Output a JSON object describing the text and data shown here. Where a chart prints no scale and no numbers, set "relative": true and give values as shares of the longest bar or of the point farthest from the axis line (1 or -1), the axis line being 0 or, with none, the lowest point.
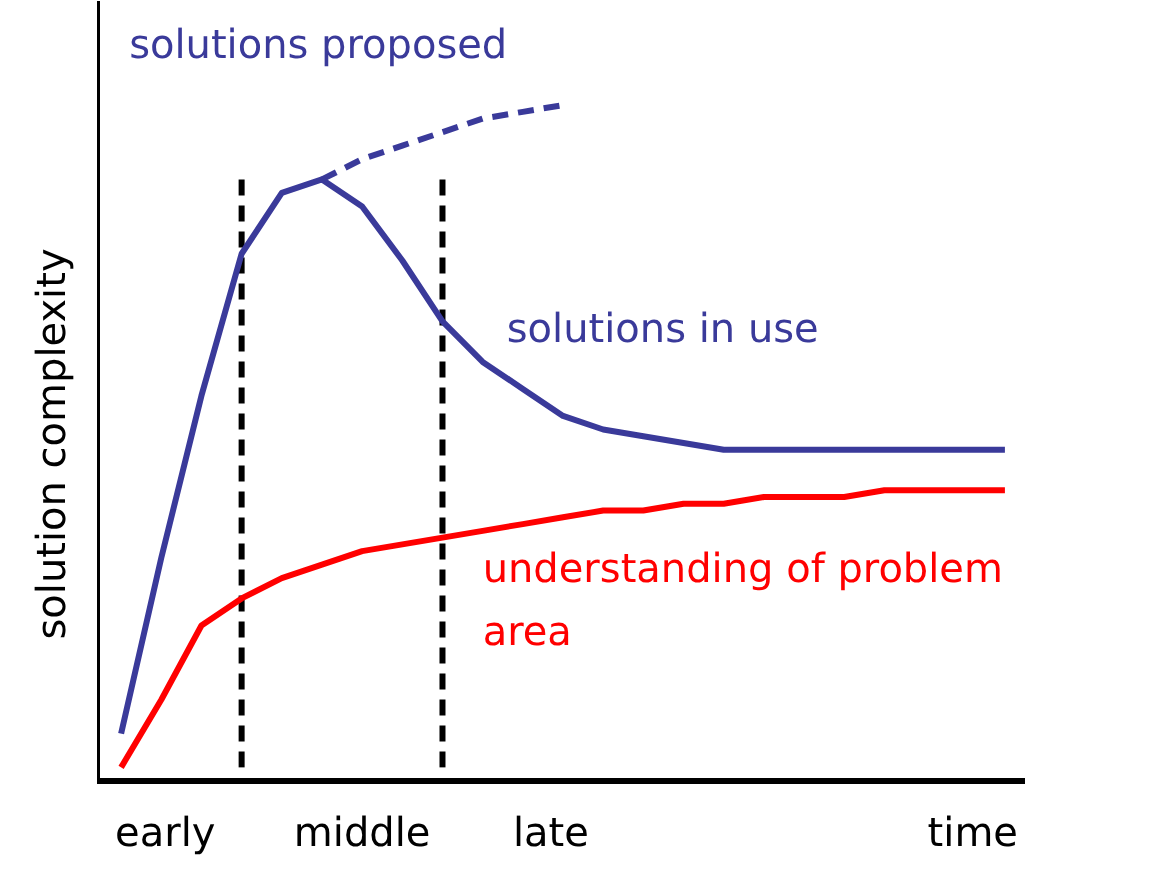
{
  "chart_data": {
    "type": "line",
    "relative": true,
    "ylabel": "solution complexity",
    "categories": [
      null,
      null,
      null,
      null,
      null,
      null,
      null,
      null,
      null,
      null,
      null,
      null,
      null,
      null,
      null,
      null,
      null,
      null,
      null,
      null,
      null,
      null,
      null
    ],
    "grid": false,
    "marker": "none",
    "annotations": [
      "early",
      "middle",
      "late",
      "time"
    ],
    "series": [
      {
        "name": "solutions proposed",
        "color": "#3a3a9a",
        "line_style": "dashed",
        "values": [
          null,
          null,
          null,
          null,
          null,
          0.89,
          0.92,
          0.94,
          0.96,
          0.98,
          0.99,
          1.0,
          null,
          null,
          null,
          null,
          null,
          null,
          null,
          null,
          null,
          null,
          null
        ]
      },
      {
        "name": "solutions in use",
        "color": "#3a3a9a",
        "line_style": "solid",
        "values": [
          0.07,
          0.33,
          0.57,
          0.78,
          0.87,
          0.89,
          0.85,
          0.77,
          0.68,
          0.62,
          0.58,
          0.54,
          0.52,
          0.51,
          0.5,
          0.49,
          0.49,
          0.49,
          0.49,
          0.49,
          0.49,
          0.49,
          0.49
        ]
      },
      {
        "name": "understanding of problem area",
        "color": "#ff0000",
        "line_style": "solid",
        "values": [
          0.02,
          0.12,
          0.23,
          0.27,
          0.3,
          0.32,
          0.34,
          0.35,
          0.36,
          0.37,
          0.38,
          0.39,
          0.4,
          0.4,
          0.41,
          0.41,
          0.42,
          0.42,
          0.42,
          0.43,
          0.43,
          0.43,
          0.43
        ]
      }
    ]
  }
}
